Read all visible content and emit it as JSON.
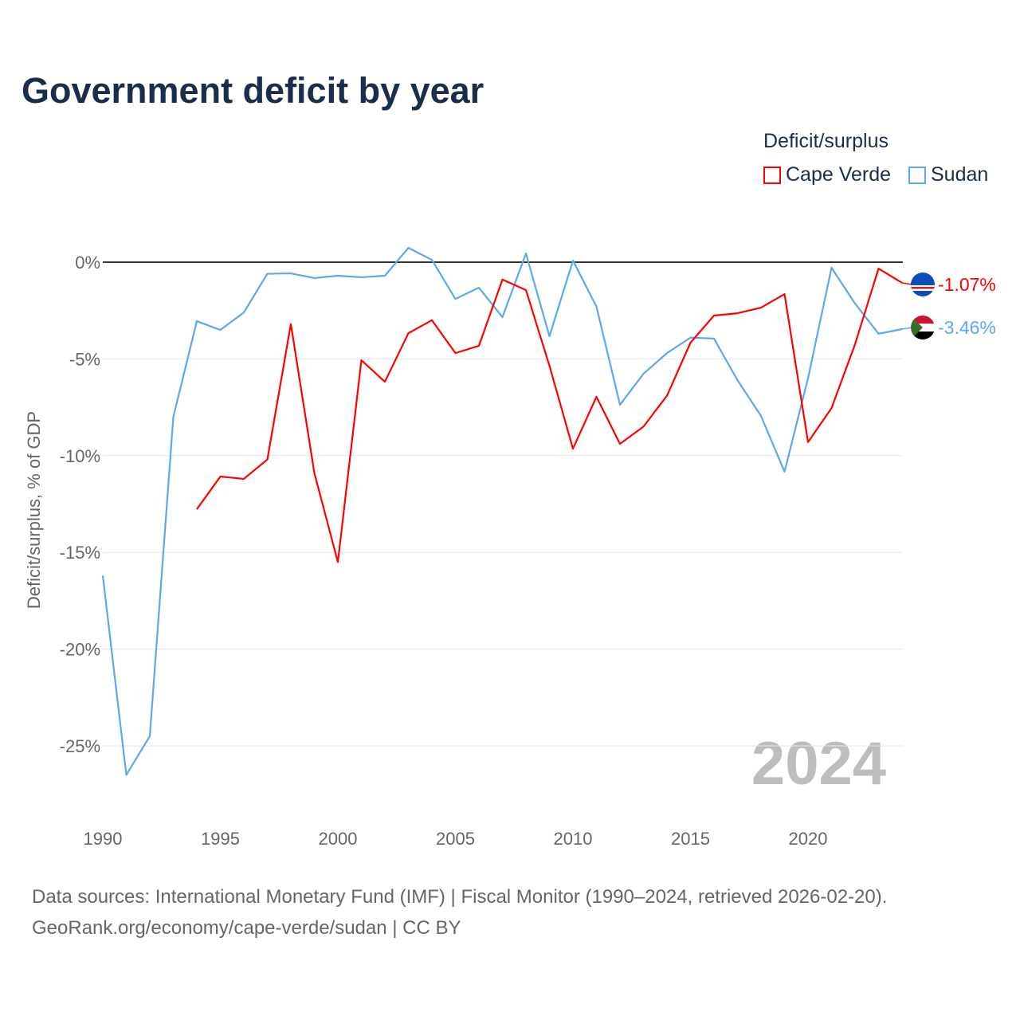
{
  "title": "Government deficit by year",
  "legend": {
    "title": "Deficit/surplus",
    "items": [
      {
        "label": "Cape Verde",
        "color": "#ff0000"
      },
      {
        "label": "Sudan",
        "color": "#5ca8ec"
      }
    ]
  },
  "source": {
    "line1": "Data sources: International Monetary Fund (IMF) | Fiscal Monitor (1990–2024, retrieved 2026-02-20).",
    "line2": "GeoRank.org/economy/cape-verde/sudan | CC BY"
  },
  "chart_data": {
    "type": "line",
    "title": "Government deficit by year",
    "xlabel": "",
    "ylabel": "Deficit/surplus, % of GDP",
    "xlim": [
      1990,
      2024
    ],
    "ylim": [
      -27.5,
      2
    ],
    "xticks": [
      1990,
      1995,
      2000,
      2005,
      2010,
      2015,
      2020
    ],
    "yticks": [
      0,
      -5,
      -10,
      -15,
      -20,
      -25
    ],
    "ytick_labels": [
      "0%",
      "-5%",
      "-10%",
      "-15%",
      "-20%",
      "-25%"
    ],
    "year_watermark": "2024",
    "series": [
      {
        "name": "Cape Verde",
        "color": "#ff0000",
        "end_label": "-1.07%",
        "x": [
          1994,
          1995,
          1996,
          1997,
          1998,
          1999,
          2000,
          2001,
          2002,
          2003,
          2004,
          2005,
          2006,
          2007,
          2008,
          2009,
          2010,
          2011,
          2012,
          2013,
          2014,
          2015,
          2016,
          2017,
          2018,
          2019,
          2020,
          2021,
          2022,
          2023,
          2024
        ],
        "values": [
          -12.77,
          -11.08,
          -11.2,
          -10.2,
          -3.2,
          -10.9,
          -15.5,
          -5.07,
          -6.18,
          -3.67,
          -3.0,
          -4.7,
          -4.32,
          -0.9,
          -1.44,
          -5.35,
          -9.64,
          -6.96,
          -9.39,
          -8.5,
          -6.9,
          -4.16,
          -2.76,
          -2.64,
          -2.35,
          -1.65,
          -9.3,
          -7.54,
          -4.24,
          -0.33,
          -1.07
        ]
      },
      {
        "name": "Sudan",
        "color": "#5ca8ec",
        "end_label": "-3.46%",
        "x": [
          1990,
          1991,
          1992,
          1993,
          1994,
          1995,
          1996,
          1997,
          1998,
          1999,
          2000,
          2001,
          2002,
          2003,
          2004,
          2005,
          2006,
          2007,
          2008,
          2009,
          2010,
          2011,
          2012,
          2013,
          2014,
          2015,
          2016,
          2017,
          2018,
          2019,
          2020,
          2021,
          2022,
          2023,
          2024
        ],
        "values": [
          -16.2,
          -26.5,
          -24.5,
          -8.0,
          -3.05,
          -3.5,
          -2.6,
          -0.6,
          -0.58,
          -0.82,
          -0.7,
          -0.78,
          -0.7,
          0.74,
          0.12,
          -1.9,
          -1.32,
          -2.84,
          0.45,
          -3.83,
          0.08,
          -2.3,
          -7.37,
          -5.77,
          -4.7,
          -3.9,
          -3.95,
          -6.1,
          -7.95,
          -10.83,
          -6.0,
          -0.29,
          -2.14,
          -3.7,
          -3.46
        ]
      }
    ]
  }
}
